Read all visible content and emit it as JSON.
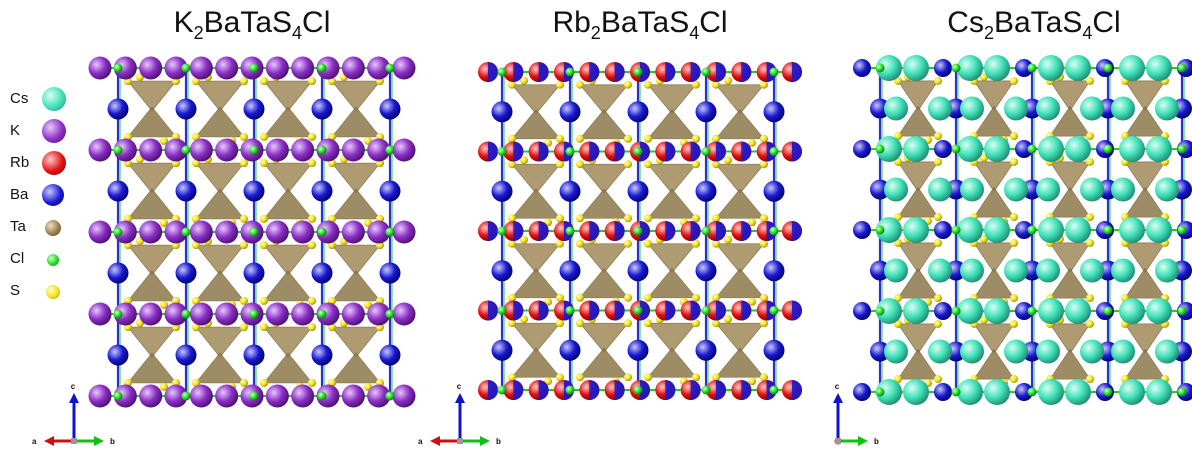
{
  "panels": [
    {
      "title": {
        "pre": "K",
        "sub1": "2",
        "mid": "BaTaS",
        "sub2": "4",
        "post": "Cl"
      },
      "a_site": "K",
      "ba_color": "#1616c8",
      "chain_color": "#22cc22",
      "axes": {
        "c": "c",
        "a": "a",
        "b": "b"
      }
    },
    {
      "title": {
        "pre": "Rb",
        "sub1": "2",
        "mid": "BaTaS",
        "sub2": "4",
        "post": "Cl"
      },
      "a_site": "Rb",
      "ba_color": "#1616c8",
      "chain_color": "#22cc22",
      "axes": {
        "c": "c",
        "a": "a",
        "b": "b"
      }
    },
    {
      "title": {
        "pre": "Cs",
        "sub1": "2",
        "mid": "BaTaS",
        "sub2": "4",
        "post": "Cl"
      },
      "a_site": "Cs",
      "ba_color": "#1616c8",
      "chain_color": "#22cc22",
      "axes": {
        "c": "c",
        "a": "",
        "b": "b"
      }
    }
  ],
  "legend": [
    {
      "label": "Cs",
      "color": "#3fe0b8",
      "icon": "cs-atom-icon"
    },
    {
      "label": "K",
      "color": "#8a2fc4",
      "icon": "k-atom-icon"
    },
    {
      "label": "Rb",
      "color": "#e01010",
      "icon": "rb-atom-icon"
    },
    {
      "label": "Ba",
      "color": "#1a1ad0",
      "icon": "ba-atom-icon"
    },
    {
      "label": "Ta",
      "color": "#9c7e4e",
      "icon": "ta-atom-icon"
    },
    {
      "label": "Cl",
      "color": "#22dd22",
      "icon": "cl-atom-icon"
    },
    {
      "label": "S",
      "color": "#f2e21a",
      "icon": "s-atom-icon"
    }
  ],
  "colors": {
    "octahedron": "#a08a5a",
    "sulfur": "#ecdc10",
    "axis_c": "#1010d0",
    "axis_a": "#d01010",
    "axis_b": "#10c010"
  }
}
